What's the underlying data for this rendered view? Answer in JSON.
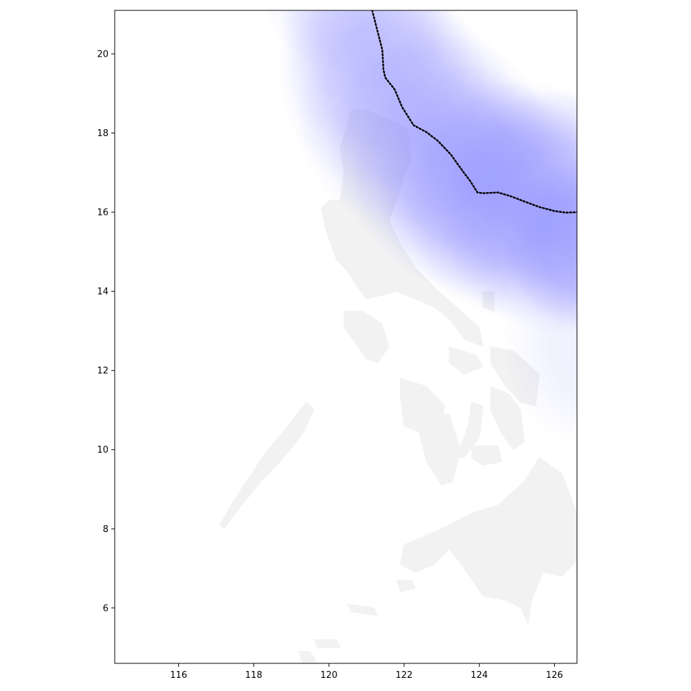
{
  "chart_data": {
    "type": "map",
    "title": "",
    "xlabel": "",
    "ylabel": "",
    "xlim": [
      114.3,
      126.6
    ],
    "ylim": [
      4.6,
      21.1
    ],
    "x_ticks": [
      116,
      118,
      120,
      122,
      124,
      126
    ],
    "x_tick_labels": [
      "116",
      "118",
      "120",
      "122",
      "124",
      "126"
    ],
    "y_ticks": [
      6,
      8,
      10,
      12,
      14,
      16,
      18,
      20
    ],
    "y_tick_labels": [
      "6",
      "8",
      "10",
      "12",
      "14",
      "16",
      "18",
      "20"
    ],
    "grid": false,
    "legend": "none",
    "land_color": "#f2f2f2",
    "swath_color": "#8080ff",
    "track_color": "#000000",
    "track_style": "dotted",
    "storm_track": {
      "lon": [
        121.15,
        121.3,
        121.42,
        121.45,
        121.5,
        121.75,
        121.95,
        122.25,
        122.6,
        122.9,
        123.25,
        123.55,
        123.75,
        123.95,
        124.1,
        124.5,
        124.85,
        125.2,
        125.6,
        126.0,
        126.3,
        126.6
      ],
      "lat": [
        21.1,
        20.55,
        20.1,
        19.6,
        19.4,
        19.1,
        18.65,
        18.2,
        18.02,
        17.8,
        17.45,
        17.05,
        16.8,
        16.5,
        16.48,
        16.5,
        16.4,
        16.27,
        16.13,
        16.03,
        15.99,
        16.0
      ]
    },
    "wind_swath": [
      {
        "lon": 120.2,
        "lat": 21.5,
        "radius_deg": 2.0,
        "intensity": 0.35
      },
      {
        "lon": 121.0,
        "lat": 20.8,
        "radius_deg": 2.3,
        "intensity": 0.38
      },
      {
        "lon": 121.2,
        "lat": 19.9,
        "radius_deg": 2.6,
        "intensity": 0.42
      },
      {
        "lon": 121.5,
        "lat": 19.2,
        "radius_deg": 2.8,
        "intensity": 0.45
      },
      {
        "lon": 122.1,
        "lat": 18.4,
        "radius_deg": 3.0,
        "intensity": 0.5
      },
      {
        "lon": 122.9,
        "lat": 17.7,
        "radius_deg": 3.0,
        "intensity": 0.55
      },
      {
        "lon": 123.6,
        "lat": 16.9,
        "radius_deg": 3.0,
        "intensity": 0.58
      },
      {
        "lon": 124.3,
        "lat": 16.5,
        "radius_deg": 3.0,
        "intensity": 0.62
      },
      {
        "lon": 125.2,
        "lat": 16.3,
        "radius_deg": 3.2,
        "intensity": 0.68
      },
      {
        "lon": 126.2,
        "lat": 16.0,
        "radius_deg": 3.3,
        "intensity": 0.72
      },
      {
        "lon": 126.9,
        "lat": 15.2,
        "radius_deg": 2.3,
        "intensity": 0.95
      },
      {
        "lon": 127.4,
        "lat": 12.6,
        "radius_deg": 2.8,
        "intensity": 0.3
      }
    ],
    "landmasses": [
      {
        "name": "Luzon",
        "lon": [
          120.6,
          121.0,
          121.4,
          121.7,
          122.1,
          122.2,
          122.0,
          121.8,
          121.6,
          121.9,
          122.3,
          122.8,
          123.4,
          124.0,
          124.1,
          123.6,
          123.2,
          122.8,
          122.3,
          121.8,
          121.4,
          121.0,
          120.7,
          120.5,
          120.2,
          119.9,
          119.8,
          120.0,
          120.3,
          120.4,
          120.3,
          120.5
        ],
        "lat": [
          18.6,
          18.6,
          18.4,
          18.3,
          18.1,
          17.4,
          16.9,
          16.3,
          15.8,
          15.2,
          14.6,
          14.1,
          13.6,
          13.1,
          12.6,
          12.8,
          13.3,
          13.6,
          13.8,
          14.0,
          13.9,
          13.8,
          14.2,
          14.5,
          14.8,
          15.6,
          16.1,
          16.3,
          16.3,
          17.0,
          17.6,
          18.3
        ]
      },
      {
        "name": "Mindoro",
        "lon": [
          120.4,
          120.9,
          121.4,
          121.6,
          121.3,
          121.0,
          120.7,
          120.4
        ],
        "lat": [
          13.5,
          13.5,
          13.2,
          12.6,
          12.2,
          12.3,
          12.7,
          13.1
        ]
      },
      {
        "name": "Palawan",
        "lon": [
          117.2,
          117.6,
          118.2,
          118.8,
          119.3,
          119.6,
          119.4,
          118.9,
          118.3,
          117.8,
          117.4,
          117.1
        ],
        "lat": [
          8.0,
          8.5,
          9.2,
          9.8,
          10.4,
          11.0,
          11.2,
          10.6,
          9.9,
          9.2,
          8.6,
          8.1
        ]
      },
      {
        "name": "Panay",
        "lon": [
          121.9,
          122.6,
          123.1,
          122.9,
          122.5,
          122.0,
          121.9
        ],
        "lat": [
          11.8,
          11.6,
          11.1,
          10.6,
          10.4,
          10.6,
          11.3
        ]
      },
      {
        "name": "Negros",
        "lon": [
          122.6,
          123.2,
          123.5,
          123.3,
          123.0,
          122.6,
          122.4
        ],
        "lat": [
          10.9,
          10.9,
          10.0,
          9.2,
          9.1,
          9.7,
          10.4
        ]
      },
      {
        "name": "Cebu",
        "lon": [
          123.8,
          124.1,
          124.0,
          123.6,
          123.4,
          123.7
        ],
        "lat": [
          11.2,
          11.1,
          10.3,
          9.8,
          9.8,
          10.6
        ]
      },
      {
        "name": "Bohol",
        "lon": [
          123.8,
          124.5,
          124.6,
          124.1,
          123.8
        ],
        "lat": [
          10.1,
          10.1,
          9.7,
          9.6,
          9.8
        ]
      },
      {
        "name": "Samar",
        "lon": [
          124.3,
          124.9,
          125.6,
          125.5,
          125.1,
          124.7,
          124.3
        ],
        "lat": [
          12.6,
          12.5,
          11.9,
          11.1,
          11.2,
          11.6,
          12.2
        ]
      },
      {
        "name": "Leyte",
        "lon": [
          124.3,
          124.8,
          125.1,
          125.2,
          124.9,
          124.6,
          124.3
        ],
        "lat": [
          11.6,
          11.4,
          11.0,
          10.2,
          10.0,
          10.4,
          11.0
        ]
      },
      {
        "name": "Masbate",
        "lon": [
          123.2,
          123.9,
          124.1,
          123.6,
          123.2
        ],
        "lat": [
          12.6,
          12.4,
          12.1,
          11.9,
          12.2
        ]
      },
      {
        "name": "Mindanao",
        "lon": [
          122.0,
          123.0,
          123.8,
          124.5,
          125.2,
          125.6,
          126.2,
          126.6,
          126.6,
          126.2,
          125.7,
          125.4,
          125.3,
          125.1,
          124.7,
          124.1,
          123.6,
          123.2,
          122.8,
          122.3,
          121.9
        ],
        "lat": [
          7.6,
          8.0,
          8.4,
          8.6,
          9.2,
          9.8,
          9.4,
          8.4,
          7.2,
          6.8,
          6.9,
          6.2,
          5.6,
          6.0,
          6.2,
          6.3,
          7.0,
          7.5,
          7.1,
          6.9,
          7.1
        ]
      },
      {
        "name": "Basilan",
        "lon": [
          121.8,
          122.2,
          122.3,
          121.9
        ],
        "lat": [
          6.7,
          6.7,
          6.5,
          6.4
        ]
      },
      {
        "name": "Sulu",
        "lon": [
          120.5,
          121.2,
          121.3,
          120.6
        ],
        "lat": [
          6.1,
          6.0,
          5.8,
          5.9
        ]
      },
      {
        "name": "Tawi-Tawi",
        "lon": [
          119.6,
          120.2,
          120.3,
          119.7
        ],
        "lat": [
          5.2,
          5.2,
          5.0,
          5.0
        ]
      },
      {
        "name": "Borneo-tip",
        "lon": [
          119.3,
          119.7,
          119.5,
          119.2
        ],
        "lat": [
          4.6,
          4.6,
          4.9,
          4.9
        ]
      },
      {
        "name": "Catanduanes",
        "lon": [
          124.1,
          124.4,
          124.4,
          124.1
        ],
        "lat": [
          14.0,
          14.0,
          13.5,
          13.6
        ]
      }
    ]
  }
}
